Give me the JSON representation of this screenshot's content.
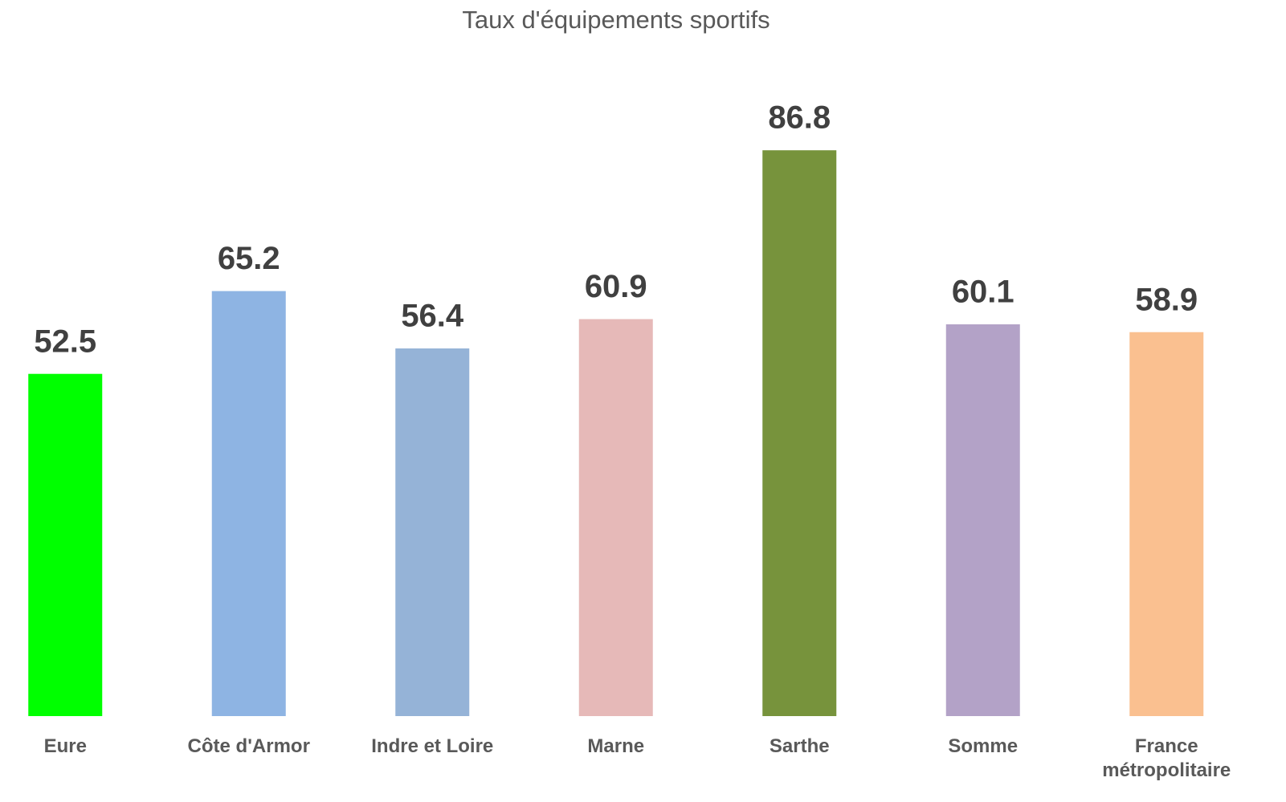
{
  "chart_data": {
    "type": "bar",
    "title": "Taux d'équipements sportifs",
    "categories": [
      "Eure",
      "Côte d'Armor",
      "Indre et Loire",
      "Marne",
      "Sarthe",
      "Somme",
      "France métropolitaire"
    ],
    "values": [
      52.5,
      65.2,
      56.4,
      60.9,
      86.8,
      60.1,
      58.9
    ],
    "colors": [
      "#00ff00",
      "#8eb4e3",
      "#95b3d7",
      "#e6b9b8",
      "#77933c",
      "#b3a2c7",
      "#fac090"
    ],
    "ylim": [
      0,
      100
    ]
  }
}
